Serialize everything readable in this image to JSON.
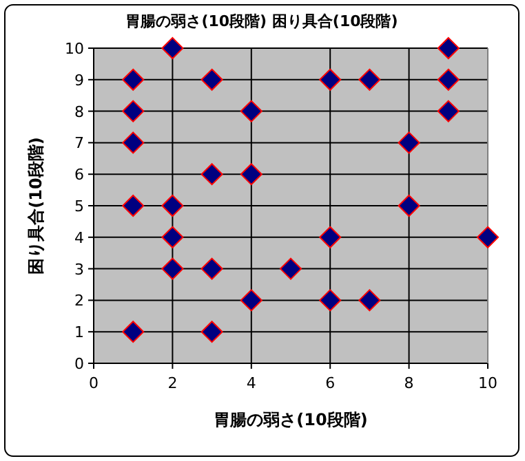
{
  "chart_data": {
    "type": "scatter",
    "title": "胃腸の弱さ(10段階) 困り具合(10段階)",
    "xlabel": "胃腸の弱さ(10段階)",
    "ylabel": "困り具合(10段階)",
    "xlim": [
      0,
      10
    ],
    "ylim": [
      0,
      10
    ],
    "xticks": [
      0,
      2,
      4,
      6,
      8,
      10
    ],
    "yticks": [
      0,
      1,
      2,
      3,
      4,
      5,
      6,
      7,
      8,
      9,
      10
    ],
    "grid": true,
    "marker": "diamond",
    "series": [
      {
        "color": "#000080",
        "x": [
          2,
          9,
          1,
          3,
          6,
          7,
          9,
          1,
          4,
          9,
          1,
          8,
          3,
          4,
          1,
          2,
          8,
          2,
          6,
          10,
          2,
          3,
          5,
          4,
          6,
          7,
          1,
          3
        ],
        "values": [
          10,
          10,
          9,
          9,
          9,
          9,
          9,
          8,
          8,
          8,
          7,
          7,
          6,
          6,
          5,
          5,
          5,
          4,
          4,
          4,
          3,
          3,
          3,
          2,
          2,
          2,
          1,
          1
        ]
      }
    ]
  }
}
